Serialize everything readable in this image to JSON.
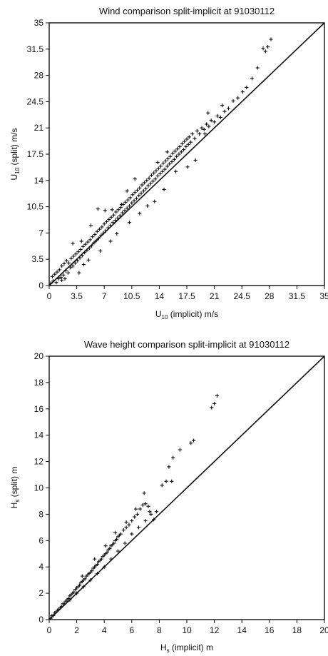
{
  "chart_data": [
    {
      "type": "scatter",
      "title": "Wind comparison split-implicit at 91030112",
      "xlabel": {
        "pre": "U",
        "sub": "10",
        "post": " (implicit) m/s"
      },
      "ylabel": {
        "pre": "U",
        "sub": "10",
        "post": " (split) m/s"
      },
      "xlim": [
        0,
        35
      ],
      "ylim": [
        0,
        35
      ],
      "xticks": [
        "0",
        "3.5",
        "7",
        "10.5",
        "14",
        "17.5",
        "21",
        "24.5",
        "28",
        "31.5",
        "35"
      ],
      "yticks": [
        "0",
        "3.5",
        "7",
        "10.5",
        "14",
        "17.5",
        "21",
        "24.5",
        "28",
        "31.5",
        "35"
      ],
      "reference_line": "y = x",
      "marker": "+",
      "points": [
        [
          0.2,
          0.3
        ],
        [
          0.4,
          1.2
        ],
        [
          0.5,
          0.6
        ],
        [
          0.7,
          1.5
        ],
        [
          0.9,
          0.4
        ],
        [
          1.0,
          1.8
        ],
        [
          1.2,
          0.9
        ],
        [
          1.3,
          2.1
        ],
        [
          1.5,
          1.1
        ],
        [
          1.6,
          2.6
        ],
        [
          1.8,
          1.4
        ],
        [
          1.9,
          2.9
        ],
        [
          2.1,
          2.0
        ],
        [
          2.2,
          3.3
        ],
        [
          2.4,
          1.7
        ],
        [
          2.5,
          3.0
        ],
        [
          2.7,
          2.4
        ],
        [
          2.8,
          3.6
        ],
        [
          3.0,
          2.6
        ],
        [
          3.1,
          3.9
        ],
        [
          3.3,
          3.0
        ],
        [
          3.4,
          4.2
        ],
        [
          3.6,
          3.3
        ],
        [
          3.7,
          4.5
        ],
        [
          3.9,
          3.7
        ],
        [
          4.0,
          4.8
        ],
        [
          4.2,
          4.0
        ],
        [
          4.3,
          5.2
        ],
        [
          4.5,
          4.4
        ],
        [
          4.6,
          5.5
        ],
        [
          4.8,
          4.7
        ],
        [
          4.9,
          5.8
        ],
        [
          5.1,
          5.0
        ],
        [
          5.2,
          6.1
        ],
        [
          5.4,
          5.3
        ],
        [
          5.5,
          6.5
        ],
        [
          5.7,
          5.7
        ],
        [
          5.8,
          6.8
        ],
        [
          6.0,
          6.0
        ],
        [
          6.1,
          7.2
        ],
        [
          6.3,
          6.3
        ],
        [
          6.4,
          7.5
        ],
        [
          6.6,
          6.7
        ],
        [
          6.7,
          7.8
        ],
        [
          6.9,
          7.0
        ],
        [
          7.0,
          8.2
        ],
        [
          7.2,
          7.3
        ],
        [
          7.3,
          8.5
        ],
        [
          7.5,
          7.7
        ],
        [
          7.6,
          8.8
        ],
        [
          7.8,
          8.0
        ],
        [
          7.9,
          9.1
        ],
        [
          8.1,
          8.4
        ],
        [
          8.2,
          9.4
        ],
        [
          8.4,
          8.7
        ],
        [
          8.5,
          9.8
        ],
        [
          8.7,
          9.0
        ],
        [
          8.8,
          10.1
        ],
        [
          9.0,
          9.3
        ],
        [
          9.1,
          10.4
        ],
        [
          9.3,
          9.7
        ],
        [
          9.4,
          10.8
        ],
        [
          9.6,
          10.0
        ],
        [
          9.7,
          11.1
        ],
        [
          9.9,
          10.3
        ],
        [
          10.0,
          11.4
        ],
        [
          10.2,
          10.6
        ],
        [
          10.3,
          11.7
        ],
        [
          10.5,
          11.0
        ],
        [
          10.6,
          12.1
        ],
        [
          10.8,
          11.3
        ],
        [
          10.9,
          12.4
        ],
        [
          11.1,
          11.6
        ],
        [
          11.2,
          12.7
        ],
        [
          11.4,
          12.0
        ],
        [
          11.5,
          13.0
        ],
        [
          11.7,
          12.3
        ],
        [
          11.8,
          13.4
        ],
        [
          12.0,
          12.6
        ],
        [
          12.1,
          13.7
        ],
        [
          12.3,
          12.9
        ],
        [
          12.4,
          14.0
        ],
        [
          12.6,
          13.3
        ],
        [
          12.7,
          14.3
        ],
        [
          12.9,
          13.6
        ],
        [
          13.0,
          14.7
        ],
        [
          13.2,
          13.9
        ],
        [
          13.3,
          15.0
        ],
        [
          13.5,
          14.2
        ],
        [
          13.6,
          15.3
        ],
        [
          13.8,
          14.6
        ],
        [
          13.9,
          15.6
        ],
        [
          14.1,
          14.9
        ],
        [
          14.2,
          15.9
        ],
        [
          14.4,
          15.2
        ],
        [
          14.5,
          16.3
        ],
        [
          14.7,
          15.5
        ],
        [
          14.8,
          16.6
        ],
        [
          15.0,
          15.9
        ],
        [
          15.1,
          16.9
        ],
        [
          15.3,
          16.2
        ],
        [
          15.4,
          17.2
        ],
        [
          15.6,
          16.5
        ],
        [
          15.7,
          17.6
        ],
        [
          15.9,
          16.8
        ],
        [
          16.0,
          17.9
        ],
        [
          16.2,
          17.2
        ],
        [
          16.3,
          18.2
        ],
        [
          16.5,
          17.5
        ],
        [
          16.6,
          18.5
        ],
        [
          16.8,
          17.8
        ],
        [
          16.9,
          18.9
        ],
        [
          17.1,
          18.1
        ],
        [
          17.2,
          19.2
        ],
        [
          17.4,
          18.5
        ],
        [
          17.5,
          19.5
        ],
        [
          17.7,
          18.8
        ],
        [
          17.8,
          19.8
        ],
        [
          18.0,
          19.1
        ],
        [
          18.2,
          20.2
        ],
        [
          18.5,
          19.6
        ],
        [
          18.8,
          20.6
        ],
        [
          19.1,
          20.2
        ],
        [
          19.4,
          21.0
        ],
        [
          19.7,
          20.8
        ],
        [
          20.0,
          21.5
        ],
        [
          20.3,
          21.2
        ],
        [
          20.6,
          22.0
        ],
        [
          21.0,
          21.8
        ],
        [
          21.4,
          22.6
        ],
        [
          21.8,
          22.4
        ],
        [
          22.3,
          23.2
        ],
        [
          22.8,
          23.6
        ],
        [
          23.4,
          24.6
        ],
        [
          24.0,
          25.0
        ],
        [
          24.6,
          25.8
        ],
        [
          25.1,
          26.4
        ],
        [
          25.8,
          27.6
        ],
        [
          26.5,
          29.0
        ],
        [
          27.2,
          31.6
        ],
        [
          27.5,
          31.2
        ],
        [
          27.8,
          31.8
        ],
        [
          28.2,
          32.8
        ],
        [
          3.0,
          5.6
        ],
        [
          4.1,
          5.9
        ],
        [
          5.3,
          8.0
        ],
        [
          6.2,
          10.2
        ],
        [
          7.1,
          10.0
        ],
        [
          8.0,
          10.1
        ],
        [
          9.2,
          10.8
        ],
        [
          6.5,
          4.6
        ],
        [
          8.6,
          6.9
        ],
        [
          10.2,
          8.4
        ],
        [
          11.5,
          9.6
        ],
        [
          13.4,
          11.2
        ],
        [
          14.6,
          12.8
        ],
        [
          16.1,
          15.2
        ],
        [
          17.6,
          15.8
        ],
        [
          19.8,
          20.2
        ],
        [
          2.0,
          0.9
        ],
        [
          3.8,
          1.7
        ],
        [
          5.0,
          3.4
        ],
        [
          1.6,
          0.7
        ],
        [
          12.5,
          10.6
        ],
        [
          15.0,
          17.8
        ],
        [
          18.6,
          16.7
        ],
        [
          9.9,
          12.6
        ],
        [
          7.8,
          5.9
        ],
        [
          4.4,
          2.8
        ],
        [
          20.2,
          23.0
        ],
        [
          10.9,
          14.2
        ],
        [
          13.8,
          16.4
        ],
        [
          22.0,
          24.0
        ]
      ]
    },
    {
      "type": "scatter",
      "title": "Wave height comparison split-implicit at 91030112",
      "xlabel": {
        "pre": "H",
        "sub": "s",
        "post": " (implicit) m"
      },
      "ylabel": {
        "pre": "H",
        "sub": "s",
        "post": " (split) m"
      },
      "xlim": [
        0,
        20
      ],
      "ylim": [
        0,
        20
      ],
      "xticks": [
        "0",
        "2",
        "4",
        "6",
        "8",
        "10",
        "12",
        "14",
        "16",
        "18",
        "20"
      ],
      "yticks": [
        "0",
        "2",
        "4",
        "6",
        "8",
        "10",
        "12",
        "14",
        "16",
        "18",
        "20"
      ],
      "reference_line": "y = x",
      "marker": "+",
      "points": [
        [
          0.1,
          0.1
        ],
        [
          0.2,
          0.3
        ],
        [
          0.3,
          0.3
        ],
        [
          0.4,
          0.5
        ],
        [
          0.5,
          0.6
        ],
        [
          0.6,
          0.7
        ],
        [
          0.7,
          0.8
        ],
        [
          0.8,
          0.9
        ],
        [
          0.9,
          1.0
        ],
        [
          1.0,
          1.2
        ],
        [
          1.1,
          1.2
        ],
        [
          1.2,
          1.4
        ],
        [
          1.3,
          1.5
        ],
        [
          1.4,
          1.6
        ],
        [
          1.5,
          1.8
        ],
        [
          1.6,
          1.9
        ],
        [
          1.7,
          2.0
        ],
        [
          1.8,
          2.1
        ],
        [
          1.9,
          2.3
        ],
        [
          2.0,
          2.4
        ],
        [
          2.1,
          2.5
        ],
        [
          2.2,
          2.6
        ],
        [
          2.3,
          2.8
        ],
        [
          2.4,
          2.9
        ],
        [
          2.5,
          3.0
        ],
        [
          2.6,
          3.1
        ],
        [
          2.7,
          3.3
        ],
        [
          2.8,
          3.4
        ],
        [
          2.9,
          3.5
        ],
        [
          3.0,
          3.6
        ],
        [
          3.1,
          3.7
        ],
        [
          3.2,
          3.9
        ],
        [
          3.3,
          4.0
        ],
        [
          3.4,
          4.1
        ],
        [
          3.5,
          4.2
        ],
        [
          3.6,
          4.4
        ],
        [
          3.7,
          4.5
        ],
        [
          3.8,
          4.6
        ],
        [
          3.9,
          4.8
        ],
        [
          4.0,
          4.9
        ],
        [
          4.1,
          5.0
        ],
        [
          4.2,
          5.1
        ],
        [
          4.3,
          5.3
        ],
        [
          4.4,
          5.4
        ],
        [
          4.5,
          5.6
        ],
        [
          4.6,
          5.7
        ],
        [
          4.7,
          5.8
        ],
        [
          4.8,
          6.0
        ],
        [
          4.9,
          6.1
        ],
        [
          5.0,
          6.3
        ],
        [
          5.1,
          6.4
        ],
        [
          5.2,
          6.5
        ],
        [
          5.4,
          6.8
        ],
        [
          5.6,
          7.0
        ],
        [
          5.8,
          7.2
        ],
        [
          6.0,
          7.5
        ],
        [
          6.2,
          7.8
        ],
        [
          6.4,
          8.0
        ],
        [
          6.6,
          8.4
        ],
        [
          6.8,
          8.7
        ],
        [
          7.0,
          8.8
        ],
        [
          7.2,
          8.6
        ],
        [
          7.4,
          8.0
        ],
        [
          7.6,
          7.6
        ],
        [
          7.8,
          8.2
        ],
        [
          8.2,
          10.2
        ],
        [
          8.5,
          10.5
        ],
        [
          8.9,
          10.5
        ],
        [
          8.7,
          11.6
        ],
        [
          9.0,
          12.3
        ],
        [
          9.5,
          12.9
        ],
        [
          10.3,
          13.4
        ],
        [
          10.5,
          13.6
        ],
        [
          11.8,
          16.1
        ],
        [
          12.0,
          16.4
        ],
        [
          12.2,
          17.0
        ],
        [
          1.5,
          1.5
        ],
        [
          2.0,
          2.0
        ],
        [
          2.5,
          2.5
        ],
        [
          3.0,
          3.0
        ],
        [
          3.5,
          3.5
        ],
        [
          4.0,
          4.0
        ],
        [
          4.5,
          4.6
        ],
        [
          5.0,
          5.2
        ],
        [
          5.5,
          5.8
        ],
        [
          6.0,
          6.5
        ],
        [
          6.5,
          7.0
        ],
        [
          7.0,
          7.5
        ],
        [
          2.4,
          3.3
        ],
        [
          3.3,
          4.6
        ],
        [
          4.1,
          5.6
        ],
        [
          4.8,
          6.6
        ],
        [
          5.6,
          7.4
        ],
        [
          6.3,
          8.4
        ],
        [
          6.9,
          9.6
        ],
        [
          7.3,
          8.2
        ]
      ]
    }
  ]
}
